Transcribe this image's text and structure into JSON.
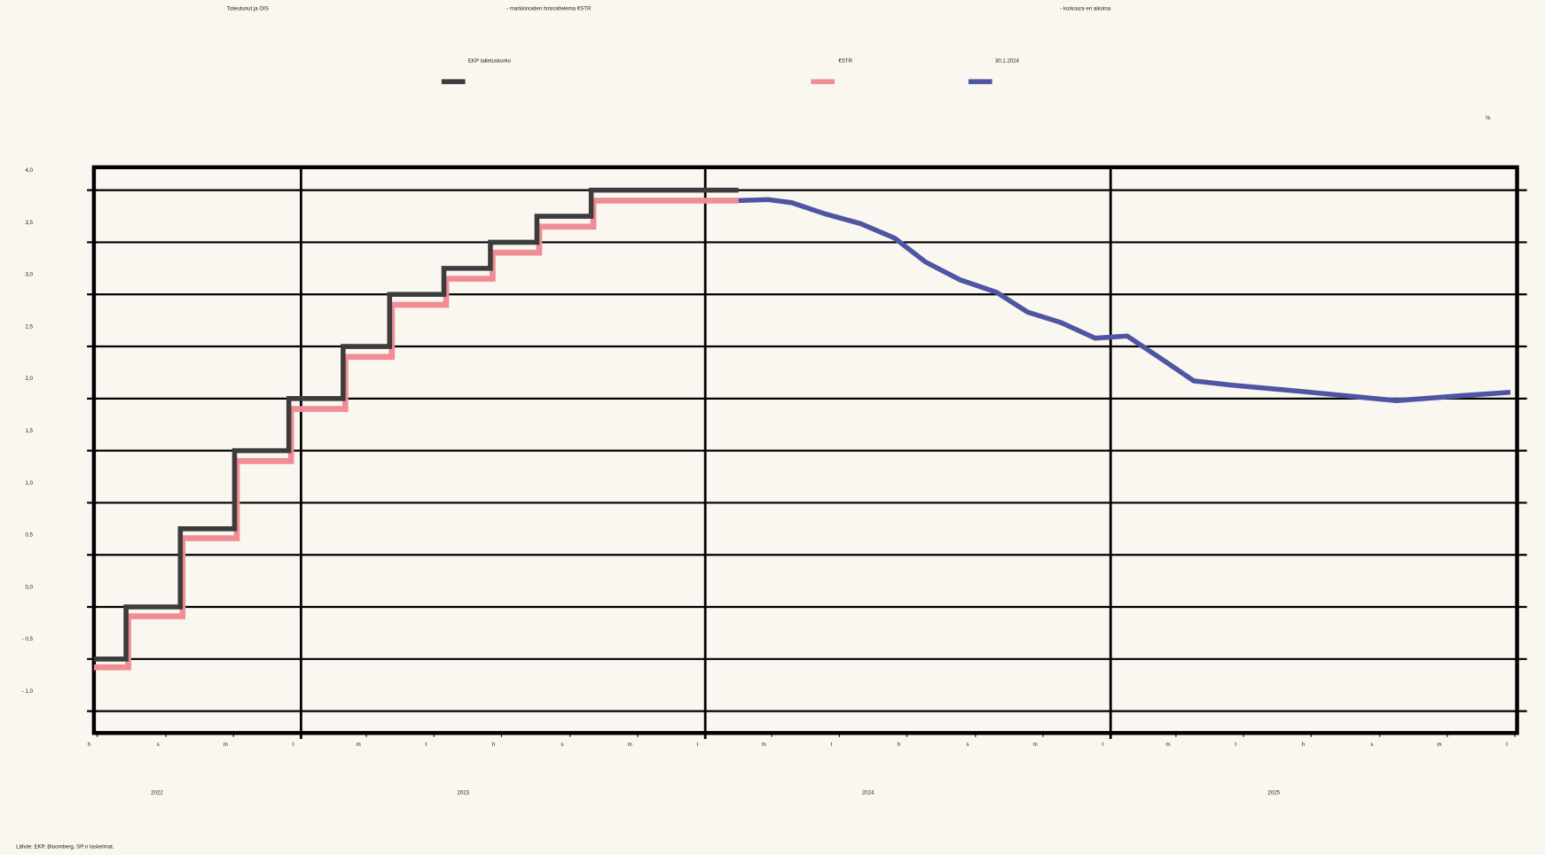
{
  "chart_data": {
    "type": "line",
    "subtitle": [
      "Toteutunut ja OIS",
      "- markkinoiden hinnoittelema €STR",
      "- korkoura eri aikoina"
    ],
    "unit_label": "%",
    "source": "Lähde: EKP, Bloomberg, SP:n laskelmat.",
    "series": [
      {
        "name": "EKP talletuskorko",
        "color": "#3c3c3c",
        "step": true,
        "x": [
          "2022-06-28",
          "2022-07-27",
          "2022-09-14",
          "2022-11-02",
          "2022-12-21",
          "2023-02-08",
          "2023-03-22",
          "2023-05-10",
          "2023-06-21",
          "2023-08-02",
          "2023-09-20",
          "2024-01-31"
        ],
        "values": [
          -0.5,
          0,
          0.75,
          1.5,
          2.0,
          2.5,
          3.0,
          3.25,
          3.5,
          3.75,
          4.0,
          4.0
        ]
      },
      {
        "name": "€STR",
        "color": "#f08c94",
        "step": true,
        "x": [
          "2022-06-28",
          "2022-07-29",
          "2022-09-16",
          "2022-11-04",
          "2022-12-23",
          "2023-02-10",
          "2023-03-24",
          "2023-05-12",
          "2023-06-23",
          "2023-08-04",
          "2023-09-22",
          "2024-01-31"
        ],
        "values": [
          -0.58,
          -0.09,
          0.66,
          1.4,
          1.9,
          2.4,
          2.9,
          3.15,
          3.4,
          3.65,
          3.9,
          3.9
        ]
      },
      {
        "name": "30.1.2024",
        "color": "#4f55a3",
        "step": false,
        "x": [
          "2024-01-31",
          "2024-02-27",
          "2024-03-19",
          "2024-04-19",
          "2024-05-20",
          "2024-06-20",
          "2024-07-18",
          "2024-08-18",
          "2024-09-20",
          "2024-10-18",
          "2024-11-17",
          "2024-12-18",
          "2025-01-16",
          "2025-02-16",
          "2025-03-17",
          "2025-04-19",
          "2025-06-21",
          "2025-09-16",
          "2025-11-17",
          "2025-12-28"
        ],
        "values": [
          3.9,
          3.91,
          3.88,
          3.77,
          3.68,
          3.54,
          3.31,
          3.14,
          3.02,
          2.83,
          2.73,
          2.58,
          2.6,
          2.38,
          2.17,
          2.13,
          2.07,
          1.98,
          2.03,
          2.06
        ]
      }
    ],
    "xlim": [
      "2022-06-28",
      "2026-01-03"
    ],
    "xticks": [
      {
        "value": "2022-07-01",
        "label": "h"
      },
      {
        "value": "2022-09-01",
        "label": "s"
      },
      {
        "value": "2022-11-01",
        "label": "m"
      },
      {
        "value": "2023-01-01",
        "label": "t"
      },
      {
        "value": "2023-03-01",
        "label": "m"
      },
      {
        "value": "2023-05-01",
        "label": "t"
      },
      {
        "value": "2023-07-01",
        "label": "h"
      },
      {
        "value": "2023-09-01",
        "label": "s"
      },
      {
        "value": "2023-11-01",
        "label": "m"
      },
      {
        "value": "2024-01-01",
        "label": "t"
      },
      {
        "value": "2024-03-01",
        "label": "m"
      },
      {
        "value": "2024-05-01",
        "label": "t"
      },
      {
        "value": "2024-07-01",
        "label": "h"
      },
      {
        "value": "2024-09-01",
        "label": "s"
      },
      {
        "value": "2024-11-01",
        "label": "m"
      },
      {
        "value": "2025-01-01",
        "label": "t"
      },
      {
        "value": "2025-03-01",
        "label": "m"
      },
      {
        "value": "2025-05-01",
        "label": "t"
      },
      {
        "value": "2025-07-01",
        "label": "h"
      },
      {
        "value": "2025-09-01",
        "label": "s"
      },
      {
        "value": "2025-11-01",
        "label": "m"
      },
      {
        "value": "2026-01-01",
        "label": "t"
      }
    ],
    "major_xticks": [
      "2023-01-01",
      "2024-01-01",
      "2025-01-01"
    ],
    "years": [
      "2022",
      "2023",
      "2024",
      "2025"
    ],
    "ylim": [
      -1.21,
      4.22
    ],
    "yticks": [
      {
        "value": -1.0,
        "label": "- 1,0"
      },
      {
        "value": -0.5,
        "label": "- 0,5"
      },
      {
        "value": 0,
        "label": "0,0"
      },
      {
        "value": 0.5,
        "label": "0,5"
      },
      {
        "value": 1.0,
        "label": "1,0"
      },
      {
        "value": 1.5,
        "label": "1,5"
      },
      {
        "value": 2.0,
        "label": "2,0"
      },
      {
        "value": 2.5,
        "label": "2,5"
      },
      {
        "value": 3.0,
        "label": "3,0"
      },
      {
        "value": 3.5,
        "label": "3,5"
      },
      {
        "value": 4.0,
        "label": "4,0"
      }
    ],
    "grid": true
  }
}
